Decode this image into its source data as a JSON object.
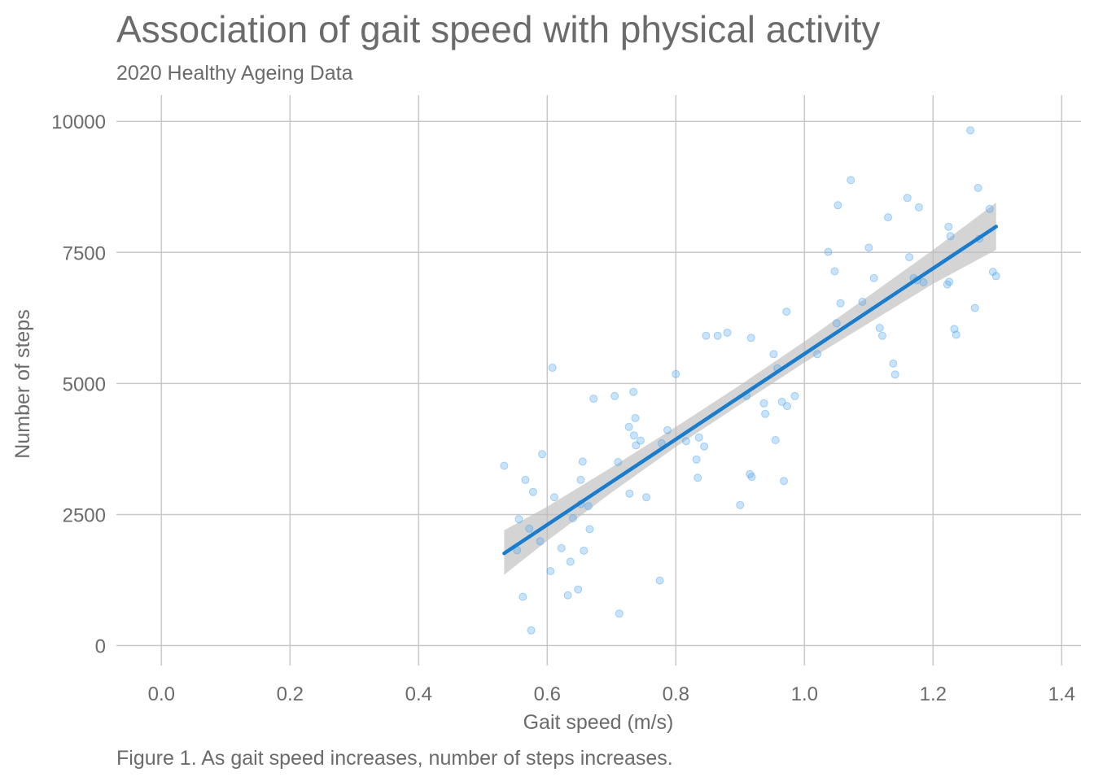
{
  "chart_data": {
    "type": "scatter",
    "title": "Association of gait speed with physical activity",
    "subtitle": "2020 Healthy Ageing Data",
    "caption": "Figure 1. As gait speed increases, number of steps increases.",
    "xlabel": "Gait speed (m/s)",
    "ylabel": "Number of steps",
    "xlim": [
      -0.07,
      1.43
    ],
    "ylim": [
      -380,
      10500
    ],
    "xticks": [
      0.0,
      0.2,
      0.4,
      0.6,
      0.8,
      1.0,
      1.2,
      1.4
    ],
    "xtick_labels": [
      "0.0",
      "0.2",
      "0.4",
      "0.6",
      "0.8",
      "1.0",
      "1.2",
      "1.4"
    ],
    "yticks": [
      0,
      2500,
      5000,
      7500,
      10000
    ],
    "ytick_labels": [
      "0",
      "2500",
      "5000",
      "7500",
      "10000"
    ],
    "grid": true,
    "colors": {
      "points": "#4aa3f0",
      "fit_line": "#1a7ccc",
      "confidence_band": "#bdbdbd"
    },
    "points": [
      [
        0.533,
        3430
      ],
      [
        0.553,
        1820
      ],
      [
        0.556,
        2410
      ],
      [
        0.562,
        930
      ],
      [
        0.566,
        3160
      ],
      [
        0.572,
        2230
      ],
      [
        0.575,
        290
      ],
      [
        0.578,
        2930
      ],
      [
        0.589,
        1990
      ],
      [
        0.592,
        3650
      ],
      [
        0.605,
        1420
      ],
      [
        0.608,
        5300
      ],
      [
        0.611,
        2830
      ],
      [
        0.622,
        1860
      ],
      [
        0.632,
        960
      ],
      [
        0.636,
        1600
      ],
      [
        0.64,
        2430
      ],
      [
        0.648,
        1070
      ],
      [
        0.652,
        2700
      ],
      [
        0.652,
        3160
      ],
      [
        0.655,
        3510
      ],
      [
        0.657,
        1810
      ],
      [
        0.664,
        2660
      ],
      [
        0.666,
        2220
      ],
      [
        0.672,
        4710
      ],
      [
        0.705,
        4760
      ],
      [
        0.71,
        3500
      ],
      [
        0.712,
        610
      ],
      [
        0.727,
        4170
      ],
      [
        0.728,
        2900
      ],
      [
        0.734,
        4840
      ],
      [
        0.735,
        4010
      ],
      [
        0.737,
        4340
      ],
      [
        0.738,
        3820
      ],
      [
        0.745,
        3910
      ],
      [
        0.754,
        2830
      ],
      [
        0.775,
        1240
      ],
      [
        0.778,
        3860
      ],
      [
        0.787,
        4110
      ],
      [
        0.8,
        5180
      ],
      [
        0.816,
        3900
      ],
      [
        0.832,
        3550
      ],
      [
        0.834,
        3200
      ],
      [
        0.836,
        3970
      ],
      [
        0.844,
        3800
      ],
      [
        0.847,
        5910
      ],
      [
        0.865,
        5910
      ],
      [
        0.88,
        5970
      ],
      [
        0.9,
        2680
      ],
      [
        0.91,
        4760
      ],
      [
        0.915,
        3270
      ],
      [
        0.917,
        5870
      ],
      [
        0.918,
        3220
      ],
      [
        0.937,
        4620
      ],
      [
        0.939,
        4420
      ],
      [
        0.952,
        5560
      ],
      [
        0.955,
        3920
      ],
      [
        0.958,
        5290
      ],
      [
        0.965,
        4650
      ],
      [
        0.968,
        3140
      ],
      [
        0.972,
        6370
      ],
      [
        0.973,
        4570
      ],
      [
        0.985,
        4760
      ],
      [
        1.02,
        5560
      ],
      [
        1.037,
        7510
      ],
      [
        1.047,
        7140
      ],
      [
        1.05,
        6150
      ],
      [
        1.052,
        8400
      ],
      [
        1.056,
        6530
      ],
      [
        1.072,
        8880
      ],
      [
        1.09,
        6560
      ],
      [
        1.1,
        7590
      ],
      [
        1.108,
        7010
      ],
      [
        1.117,
        6060
      ],
      [
        1.121,
        5910
      ],
      [
        1.13,
        8170
      ],
      [
        1.138,
        5380
      ],
      [
        1.141,
        5170
      ],
      [
        1.16,
        8540
      ],
      [
        1.163,
        7410
      ],
      [
        1.17,
        7010
      ],
      [
        1.175,
        6970
      ],
      [
        1.178,
        8360
      ],
      [
        1.185,
        6930
      ],
      [
        1.222,
        6890
      ],
      [
        1.224,
        7990
      ],
      [
        1.225,
        6940
      ],
      [
        1.227,
        7810
      ],
      [
        1.233,
        6040
      ],
      [
        1.236,
        5930
      ],
      [
        1.258,
        9830
      ],
      [
        1.265,
        6440
      ],
      [
        1.27,
        8730
      ],
      [
        1.272,
        7760
      ],
      [
        1.288,
        8330
      ],
      [
        1.293,
        7130
      ],
      [
        1.298,
        7050
      ]
    ],
    "fit": {
      "slope": 8150,
      "intercept": -2585,
      "x_range": [
        0.533,
        1.298
      ]
    },
    "confidence_band": [
      {
        "x": 0.533,
        "lower": 1350,
        "upper": 2200
      },
      {
        "x": 0.6,
        "lower": 2000,
        "upper": 2650
      },
      {
        "x": 0.7,
        "lower": 2920,
        "upper": 3400
      },
      {
        "x": 0.8,
        "lower": 3790,
        "upper": 4170
      },
      {
        "x": 0.9,
        "lower": 4600,
        "upper": 4970
      },
      {
        "x": 1.0,
        "lower": 5400,
        "upper": 5800
      },
      {
        "x": 1.1,
        "lower": 6150,
        "upper": 6670
      },
      {
        "x": 1.2,
        "lower": 6900,
        "upper": 7550
      },
      {
        "x": 1.298,
        "lower": 7550,
        "upper": 8450
      }
    ]
  }
}
